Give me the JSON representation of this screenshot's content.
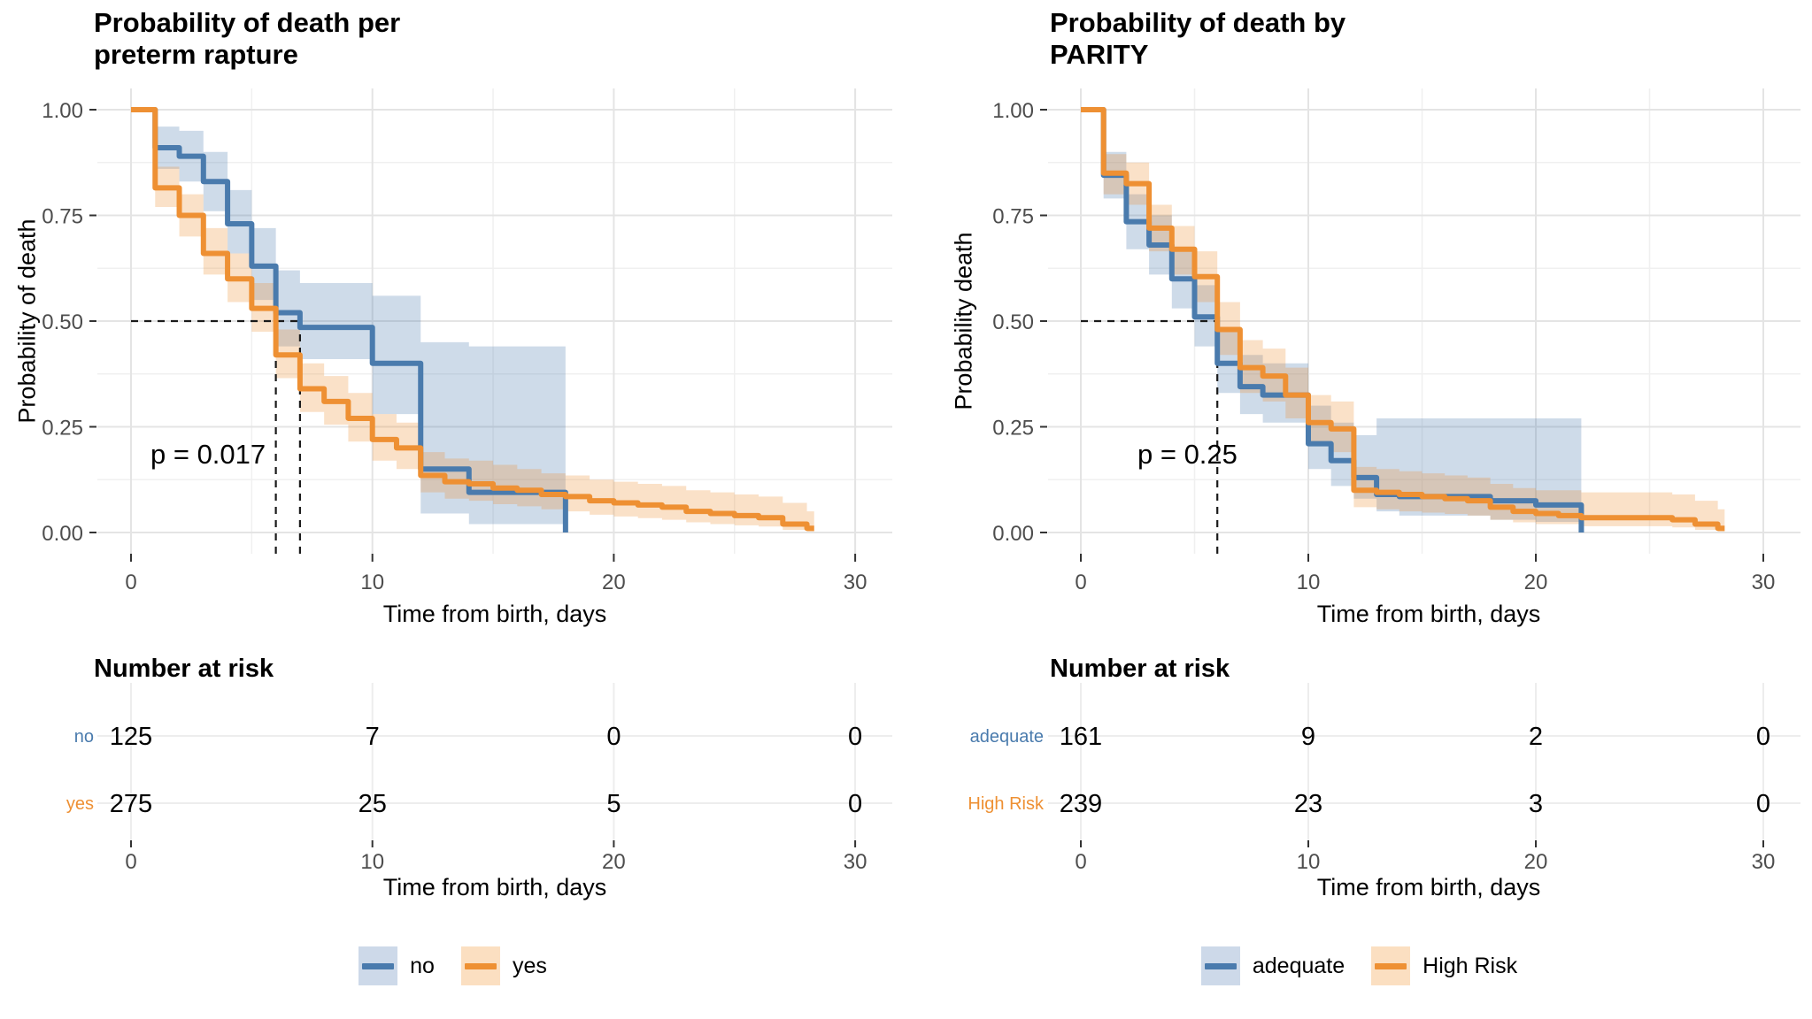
{
  "figure_type": "kaplan-meier-survival-figure",
  "chart_data": [
    {
      "type": "line",
      "subtype": "kaplan-meier-step",
      "title_text": "Probability of death per\n preterm rapture",
      "ylabel": "Probability of death",
      "xlabel": "Time from birth, days",
      "pvalue": "p = 0.017",
      "xlim": [
        0,
        30
      ],
      "ylim": [
        0,
        1
      ],
      "x_ticks": [
        0,
        10,
        20,
        30
      ],
      "x_minor": [
        5,
        15,
        25
      ],
      "y_minor": [
        0.875,
        0.625,
        0.375,
        0.125
      ],
      "y_ticks": [
        {
          "v": 1,
          "label": "1.00"
        },
        {
          "v": 0.75,
          "label": "0.75"
        },
        {
          "v": 0.5,
          "label": "0.50"
        },
        {
          "v": 0.25,
          "label": "0.25"
        },
        {
          "v": 0,
          "label": "0.00"
        }
      ],
      "grid": true,
      "legend_position": "bottom",
      "median": {
        "h": 0.5,
        "h_to": 7,
        "v": [
          6,
          7
        ]
      },
      "series": [
        {
          "name": "no",
          "color": "#4a7bad",
          "band_color": "rgba(74,123,173,0.27)",
          "swatch_color": "#cdd9e9",
          "steps": [
            [
              0,
              1
            ],
            [
              1,
              0.91
            ],
            [
              2,
              0.89
            ],
            [
              3,
              0.83
            ],
            [
              4,
              0.73
            ],
            [
              5,
              0.63
            ],
            [
              6,
              0.52
            ],
            [
              7,
              0.485
            ],
            [
              10,
              0.4
            ],
            [
              12,
              0.15
            ],
            [
              14,
              0.095
            ],
            [
              18,
              0
            ]
          ],
          "end": 18,
          "band": [
            [
              1,
              0.86,
              0.96
            ],
            [
              2,
              0.83,
              0.95
            ],
            [
              3,
              0.76,
              0.9
            ],
            [
              4,
              0.66,
              0.81
            ],
            [
              5,
              0.55,
              0.72
            ],
            [
              6,
              0.44,
              0.62
            ],
            [
              7,
              0.41,
              0.59
            ],
            [
              10,
              0.28,
              0.56
            ],
            [
              12,
              0.045,
              0.45
            ],
            [
              14,
              0.02,
              0.44
            ]
          ],
          "band_end": 18
        },
        {
          "name": "yes",
          "color": "#ee9033",
          "band_color": "rgba(238,144,51,0.27)",
          "swatch_color": "#fbdfc1",
          "steps": [
            [
              0,
              1
            ],
            [
              1,
              0.815
            ],
            [
              2,
              0.75
            ],
            [
              3,
              0.66
            ],
            [
              4,
              0.6
            ],
            [
              5,
              0.53
            ],
            [
              6,
              0.42
            ],
            [
              7,
              0.34
            ],
            [
              8,
              0.31
            ],
            [
              9,
              0.27
            ],
            [
              10,
              0.22
            ],
            [
              11,
              0.2
            ],
            [
              12,
              0.135
            ],
            [
              13,
              0.12
            ],
            [
              14,
              0.115
            ],
            [
              15,
              0.105
            ],
            [
              16,
              0.1
            ],
            [
              17,
              0.09
            ],
            [
              18,
              0.085
            ],
            [
              19,
              0.075
            ],
            [
              20,
              0.07
            ],
            [
              21,
              0.065
            ],
            [
              22,
              0.06
            ],
            [
              23,
              0.05
            ],
            [
              24,
              0.045
            ],
            [
              25,
              0.04
            ],
            [
              26,
              0.035
            ],
            [
              27,
              0.02
            ],
            [
              28,
              0.01
            ]
          ],
          "end": 28.3,
          "band": [
            [
              1,
              0.77,
              0.865
            ],
            [
              2,
              0.7,
              0.8
            ],
            [
              3,
              0.61,
              0.72
            ],
            [
              4,
              0.545,
              0.66
            ],
            [
              5,
              0.475,
              0.59
            ],
            [
              6,
              0.365,
              0.48
            ],
            [
              7,
              0.285,
              0.4
            ],
            [
              8,
              0.255,
              0.37
            ],
            [
              9,
              0.215,
              0.33
            ],
            [
              10,
              0.17,
              0.28
            ],
            [
              11,
              0.15,
              0.26
            ],
            [
              12,
              0.095,
              0.19
            ],
            [
              13,
              0.08,
              0.175
            ],
            [
              14,
              0.075,
              0.17
            ],
            [
              15,
              0.067,
              0.16
            ],
            [
              16,
              0.062,
              0.15
            ],
            [
              17,
              0.055,
              0.14
            ],
            [
              18,
              0.05,
              0.135
            ],
            [
              19,
              0.042,
              0.125
            ],
            [
              20,
              0.038,
              0.12
            ],
            [
              21,
              0.034,
              0.115
            ],
            [
              22,
              0.03,
              0.11
            ],
            [
              23,
              0.024,
              0.1
            ],
            [
              24,
              0.02,
              0.095
            ],
            [
              25,
              0.017,
              0.09
            ],
            [
              26,
              0.014,
              0.085
            ],
            [
              27,
              0.006,
              0.07
            ],
            [
              28,
              0.002,
              0.05
            ]
          ],
          "band_end": 28.3
        }
      ],
      "risk_table": {
        "heading": "Number at risk",
        "times": [
          0,
          10,
          20,
          30
        ],
        "rows": [
          {
            "label": "no",
            "counts": [
              "125",
              "7",
              "0",
              "0"
            ]
          },
          {
            "label": "yes",
            "counts": [
              "275",
              "25",
              "5",
              "0"
            ]
          }
        ],
        "xlabel": "Time from birth, days"
      },
      "legend": [
        {
          "label": "no"
        },
        {
          "label": "yes"
        }
      ]
    },
    {
      "type": "line",
      "subtype": "kaplan-meier-step",
      "title_text": "Probability of death by\n PARITY",
      "ylabel": "Probability death",
      "xlabel": "Time from birth, days",
      "pvalue": "p = 0.25",
      "xlim": [
        0,
        30
      ],
      "ylim": [
        0,
        1
      ],
      "x_ticks": [
        0,
        10,
        20,
        30
      ],
      "x_minor": [
        5,
        15,
        25
      ],
      "y_minor": [
        0.875,
        0.625,
        0.375,
        0.125
      ],
      "y_ticks": [
        {
          "v": 1,
          "label": "1.00"
        },
        {
          "v": 0.75,
          "label": "0.75"
        },
        {
          "v": 0.5,
          "label": "0.50"
        },
        {
          "v": 0.25,
          "label": "0.25"
        },
        {
          "v": 0,
          "label": "0.00"
        }
      ],
      "grid": true,
      "legend_position": "bottom",
      "median": {
        "h": 0.5,
        "h_to": 6,
        "v": [
          6
        ]
      },
      "series": [
        {
          "name": "adequate",
          "color": "#4a7bad",
          "band_color": "rgba(74,123,173,0.27)",
          "swatch_color": "#cdd9e9",
          "steps": [
            [
              0,
              1
            ],
            [
              1,
              0.845
            ],
            [
              2,
              0.735
            ],
            [
              3,
              0.68
            ],
            [
              4,
              0.6
            ],
            [
              5,
              0.51
            ],
            [
              6,
              0.4
            ],
            [
              7,
              0.345
            ],
            [
              8,
              0.325
            ],
            [
              10,
              0.21
            ],
            [
              11,
              0.17
            ],
            [
              12,
              0.13
            ],
            [
              13,
              0.09
            ],
            [
              14,
              0.085
            ],
            [
              18,
              0.075
            ],
            [
              20,
              0.065
            ],
            [
              22,
              0
            ]
          ],
          "end": 22,
          "band": [
            [
              1,
              0.79,
              0.9
            ],
            [
              2,
              0.67,
              0.8
            ],
            [
              3,
              0.61,
              0.75
            ],
            [
              4,
              0.53,
              0.675
            ],
            [
              5,
              0.44,
              0.585
            ],
            [
              6,
              0.33,
              0.475
            ],
            [
              7,
              0.28,
              0.42
            ],
            [
              8,
              0.26,
              0.4
            ],
            [
              10,
              0.15,
              0.3
            ],
            [
              11,
              0.11,
              0.26
            ],
            [
              12,
              0.08,
              0.23
            ],
            [
              13,
              0.05,
              0.27
            ],
            [
              14,
              0.04,
              0.27
            ],
            [
              18,
              0.03,
              0.27
            ],
            [
              20,
              0.025,
              0.27
            ]
          ],
          "band_end": 22
        },
        {
          "name": "High Risk",
          "color": "#ee9033",
          "band_color": "rgba(238,144,51,0.27)",
          "swatch_color": "#fbdfc1",
          "steps": [
            [
              0,
              1
            ],
            [
              1,
              0.85
            ],
            [
              2,
              0.825
            ],
            [
              3,
              0.72
            ],
            [
              4,
              0.67
            ],
            [
              5,
              0.605
            ],
            [
              6,
              0.48
            ],
            [
              7,
              0.39
            ],
            [
              8,
              0.37
            ],
            [
              9,
              0.325
            ],
            [
              10,
              0.26
            ],
            [
              11,
              0.245
            ],
            [
              12,
              0.1
            ],
            [
              13,
              0.095
            ],
            [
              14,
              0.09
            ],
            [
              15,
              0.085
            ],
            [
              16,
              0.08
            ],
            [
              17,
              0.075
            ],
            [
              18,
              0.06
            ],
            [
              19,
              0.05
            ],
            [
              20,
              0.045
            ],
            [
              21,
              0.04
            ],
            [
              22,
              0.035
            ],
            [
              26,
              0.03
            ],
            [
              27,
              0.02
            ],
            [
              28,
              0.01
            ]
          ],
          "end": 28.3,
          "band": [
            [
              1,
              0.8,
              0.895
            ],
            [
              2,
              0.775,
              0.875
            ],
            [
              3,
              0.665,
              0.775
            ],
            [
              4,
              0.61,
              0.725
            ],
            [
              5,
              0.545,
              0.665
            ],
            [
              6,
              0.42,
              0.545
            ],
            [
              7,
              0.33,
              0.455
            ],
            [
              8,
              0.31,
              0.435
            ],
            [
              9,
              0.27,
              0.39
            ],
            [
              10,
              0.205,
              0.325
            ],
            [
              11,
              0.19,
              0.31
            ],
            [
              12,
              0.06,
              0.155
            ],
            [
              13,
              0.055,
              0.15
            ],
            [
              14,
              0.05,
              0.145
            ],
            [
              15,
              0.047,
              0.14
            ],
            [
              16,
              0.044,
              0.135
            ],
            [
              17,
              0.04,
              0.13
            ],
            [
              18,
              0.03,
              0.115
            ],
            [
              19,
              0.024,
              0.105
            ],
            [
              20,
              0.02,
              0.1
            ],
            [
              22,
              0.015,
              0.095
            ],
            [
              26,
              0.012,
              0.09
            ],
            [
              27,
              0.006,
              0.075
            ],
            [
              28,
              0.002,
              0.055
            ]
          ],
          "band_end": 28.3
        }
      ],
      "risk_table": {
        "heading": "Number at risk",
        "times": [
          0,
          10,
          20,
          30
        ],
        "rows": [
          {
            "label": "adequate",
            "counts": [
              "161",
              "9",
              "2",
              "0"
            ]
          },
          {
            "label": "High Risk",
            "counts": [
              "239",
              "23",
              "3",
              "0"
            ]
          }
        ],
        "xlabel": "Time from birth, days"
      },
      "legend": [
        {
          "label": "adequate"
        },
        {
          "label": "High Risk"
        }
      ]
    }
  ],
  "colors": {
    "group1_line": "#4a7bad",
    "group2_line": "#ee9033",
    "grid_major": "#e4e4e4",
    "grid_minor": "#f0f0f0",
    "tick_label": "#4d4d4d",
    "median_dash": "#1a1a1a"
  }
}
